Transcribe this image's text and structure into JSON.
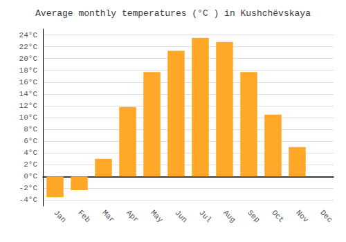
{
  "chart_data": {
    "type": "bar",
    "title": "Average monthly temperatures (°C ) in Kushchëvskaya",
    "categories": [
      "Jan",
      "Feb",
      "Mar",
      "Apr",
      "May",
      "Jun",
      "Jul",
      "Aug",
      "Sep",
      "Oct",
      "Nov",
      "Dec"
    ],
    "values": [
      -3.5,
      -2.3,
      3.0,
      11.8,
      17.7,
      21.3,
      23.5,
      22.8,
      17.7,
      10.5,
      5.0,
      0.0
    ],
    "color": "#FFA726",
    "ylim": [
      -5,
      25
    ],
    "yticks": [
      {
        "value": -4,
        "label": "-4°C"
      },
      {
        "value": -2,
        "label": "-2°C"
      },
      {
        "value": 0,
        "label": "0°C"
      },
      {
        "value": 2,
        "label": "2°C"
      },
      {
        "value": 4,
        "label": "4°C"
      },
      {
        "value": 6,
        "label": "6°C"
      },
      {
        "value": 8,
        "label": "8°C"
      },
      {
        "value": 10,
        "label": "10°C"
      },
      {
        "value": 12,
        "label": "12°C"
      },
      {
        "value": 14,
        "label": "14°C"
      },
      {
        "value": 16,
        "label": "16°C"
      },
      {
        "value": 18,
        "label": "18°C"
      },
      {
        "value": 20,
        "label": "20°C"
      },
      {
        "value": 22,
        "label": "22°C"
      },
      {
        "value": 24,
        "label": "24°C"
      }
    ],
    "grid": true
  }
}
